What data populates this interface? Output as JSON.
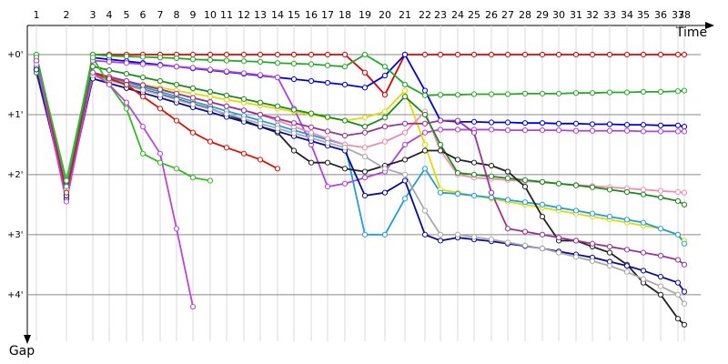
{
  "chart_data": {
    "type": "line",
    "xlabel": "Time",
    "ylabel": "Gap",
    "x": [
      1.0,
      4.3,
      7.2,
      9.0,
      10.9,
      12.7,
      14.6,
      16.4,
      18.2,
      20.1,
      21.9,
      23.8,
      25.6,
      27.5,
      29.3,
      31.2,
      33.0,
      34.9,
      37.1,
      39.3,
      41.5,
      43.7,
      45.4,
      47.3,
      49.1,
      51.0,
      52.8,
      54.7,
      56.6,
      58.4,
      60.3,
      62.1,
      64.0,
      65.9,
      67.7,
      69.6,
      71.5,
      72.2
    ],
    "xlim": [
      0,
      77
    ],
    "xticks": [
      {
        "value": 1.0,
        "label": "1"
      },
      {
        "value": 4.3,
        "label": "2"
      },
      {
        "value": 7.2,
        "label": "3"
      },
      {
        "value": 9.0,
        "label": "4"
      },
      {
        "value": 10.9,
        "label": "5"
      },
      {
        "value": 12.7,
        "label": "6"
      },
      {
        "value": 14.6,
        "label": "7"
      },
      {
        "value": 16.4,
        "label": "8"
      },
      {
        "value": 18.2,
        "label": "9"
      },
      {
        "value": 20.1,
        "label": "10"
      },
      {
        "value": 21.9,
        "label": "11"
      },
      {
        "value": 23.8,
        "label": "12"
      },
      {
        "value": 25.6,
        "label": "13"
      },
      {
        "value": 27.5,
        "label": "14"
      },
      {
        "value": 29.3,
        "label": "15"
      },
      {
        "value": 31.2,
        "label": "16"
      },
      {
        "value": 33.0,
        "label": "17"
      },
      {
        "value": 34.9,
        "label": "18"
      },
      {
        "value": 37.1,
        "label": "19"
      },
      {
        "value": 39.3,
        "label": "20"
      },
      {
        "value": 41.5,
        "label": "21"
      },
      {
        "value": 43.7,
        "label": "22"
      },
      {
        "value": 45.4,
        "label": "23"
      },
      {
        "value": 47.3,
        "label": "24"
      },
      {
        "value": 49.1,
        "label": "25"
      },
      {
        "value": 51.0,
        "label": "26"
      },
      {
        "value": 52.8,
        "label": "27"
      },
      {
        "value": 54.7,
        "label": "28"
      },
      {
        "value": 56.6,
        "label": "29"
      },
      {
        "value": 58.4,
        "label": "30"
      },
      {
        "value": 60.3,
        "label": "31"
      },
      {
        "value": 62.1,
        "label": "32"
      },
      {
        "value": 64.0,
        "label": "33"
      },
      {
        "value": 65.9,
        "label": "34"
      },
      {
        "value": 67.7,
        "label": "35"
      },
      {
        "value": 69.6,
        "label": "36"
      },
      {
        "value": 71.5,
        "label": "37"
      },
      {
        "value": 72.2,
        "label": "38"
      }
    ],
    "ylim": [
      -0.5,
      4.7
    ],
    "yticks": [
      {
        "value": 0,
        "label": "+0'"
      },
      {
        "value": 1,
        "label": "+1'"
      },
      {
        "value": 2,
        "label": "+2'"
      },
      {
        "value": 3,
        "label": "+3'"
      },
      {
        "value": 4,
        "label": "+4'"
      }
    ],
    "grid": true,
    "series": [
      {
        "color": "#e00000",
        "values": [
          0.02,
          2.35,
          0,
          0,
          0,
          0,
          0,
          0,
          0,
          0,
          0,
          0,
          0,
          0,
          0,
          0,
          0,
          0,
          0.3,
          0.67,
          0,
          0,
          0,
          0,
          0,
          0,
          0,
          0,
          0,
          0,
          0,
          0,
          0,
          0,
          0,
          0,
          0,
          0
        ]
      },
      {
        "color": "#0000dd",
        "values": [
          0.05,
          2.3,
          0.05,
          0.08,
          0.11,
          0.14,
          0.17,
          0.2,
          0.23,
          0.26,
          0.29,
          0.32,
          0.35,
          0.38,
          0.41,
          0.44,
          0.47,
          0.5,
          0.55,
          0.35,
          0,
          0.6,
          1.1,
          1.12,
          1.12,
          1.13,
          1.13,
          1.14,
          1.14,
          1.15,
          1.15,
          1.16,
          1.16,
          1.17,
          1.17,
          1.18,
          1.18,
          1.2
        ]
      },
      {
        "color": "#22aa22",
        "values": [
          0,
          2.2,
          0,
          0.02,
          0.03,
          0.04,
          0.05,
          0.06,
          0.08,
          0.09,
          0.1,
          0.11,
          0.12,
          0.14,
          0.15,
          0.16,
          0.18,
          0.2,
          0,
          0.2,
          0.5,
          0.68,
          0.67,
          0.67,
          0.66,
          0.66,
          0.66,
          0.65,
          0.65,
          0.65,
          0.64,
          0.64,
          0.63,
          0.63,
          0.62,
          0.62,
          0.61,
          0.6
        ]
      },
      {
        "color": "#b040e0",
        "values": [
          0.1,
          2.4,
          0.1,
          0.12,
          0.14,
          0.16,
          0.18,
          0.2,
          0.22,
          0.25,
          0.28,
          0.31,
          0.34,
          0.38,
          0.9,
          1.5,
          2.2,
          2.15,
          2.05,
          1.95,
          1.5,
          1.3,
          1.25,
          1.25,
          1.25,
          1.25,
          1.26,
          1.26,
          1.26,
          1.26,
          1.27,
          1.27,
          1.27,
          1.27,
          1.28,
          1.28,
          1.28,
          1.28
        ]
      },
      {
        "color": "#dddd00",
        "values": [
          0.15,
          2.25,
          0.35,
          0.4,
          0.45,
          0.5,
          0.55,
          0.6,
          0.65,
          0.7,
          0.75,
          0.8,
          0.85,
          0.9,
          0.95,
          1.0,
          1.05,
          1.1,
          1.05,
          0.95,
          0.6,
          1.5,
          2.25,
          2.3,
          2.35,
          2.4,
          2.45,
          2.5,
          2.55,
          2.6,
          2.65,
          2.7,
          2.75,
          2.8,
          2.85,
          2.9,
          3.0,
          3.1
        ]
      },
      {
        "color": "#1e9ee0",
        "values": [
          0.1,
          2.2,
          0.3,
          0.38,
          0.46,
          0.54,
          0.62,
          0.7,
          0.78,
          0.86,
          0.94,
          1.02,
          1.1,
          1.18,
          1.26,
          1.34,
          1.42,
          1.5,
          3.0,
          3.0,
          2.4,
          1.9,
          2.3,
          2.32,
          2.35,
          2.38,
          2.42,
          2.46,
          2.5,
          2.55,
          2.6,
          2.65,
          2.7,
          2.75,
          2.8,
          2.9,
          3.0,
          3.15
        ]
      },
      {
        "color": "#f08cb0",
        "values": [
          0.2,
          2.3,
          0.3,
          0.37,
          0.44,
          0.51,
          0.58,
          0.65,
          0.72,
          0.79,
          0.86,
          0.93,
          1.0,
          1.1,
          1.2,
          1.3,
          1.4,
          1.5,
          1.55,
          1.45,
          1.3,
          0.95,
          1.6,
          2.0,
          2.05,
          2.07,
          2.09,
          2.11,
          2.13,
          2.15,
          2.17,
          2.19,
          2.21,
          2.23,
          2.25,
          2.27,
          2.29,
          2.3
        ]
      },
      {
        "color": "#1a8a1a",
        "values": [
          0.3,
          2.3,
          0.2,
          0.26,
          0.32,
          0.38,
          0.44,
          0.5,
          0.56,
          0.62,
          0.68,
          0.74,
          0.8,
          0.86,
          0.92,
          0.98,
          1.04,
          1.1,
          1.2,
          1.05,
          0.7,
          1.0,
          1.5,
          1.97,
          2.0,
          2.03,
          2.06,
          2.09,
          2.12,
          2.15,
          2.18,
          2.21,
          2.25,
          2.29,
          2.33,
          2.38,
          2.44,
          2.5
        ]
      },
      {
        "color": "#222222",
        "values": [
          0.1,
          2.4,
          0.35,
          0.42,
          0.5,
          0.58,
          0.66,
          0.74,
          0.82,
          0.9,
          1.0,
          1.1,
          1.2,
          1.3,
          1.6,
          1.8,
          1.8,
          1.9,
          1.95,
          1.85,
          1.75,
          1.6,
          1.6,
          1.75,
          1.8,
          1.85,
          1.95,
          2.2,
          2.7,
          3.1,
          3.1,
          3.2,
          3.3,
          3.5,
          3.8,
          4.0,
          4.4,
          4.5
        ]
      },
      {
        "color": "#993399",
        "values": [
          0.2,
          2.35,
          0.3,
          0.37,
          0.44,
          0.51,
          0.58,
          0.65,
          0.72,
          0.79,
          0.86,
          0.93,
          1.0,
          1.07,
          1.14,
          1.21,
          1.28,
          1.35,
          1.3,
          1.2,
          1.15,
          1.15,
          1.1,
          1.1,
          1.3,
          2.3,
          2.9,
          2.95,
          3.0,
          3.05,
          3.1,
          3.15,
          3.2,
          3.25,
          3.3,
          3.35,
          3.42,
          3.5
        ]
      },
      {
        "color": "#0a0a9a",
        "values": [
          0.25,
          2.35,
          0.4,
          0.48,
          0.56,
          0.64,
          0.72,
          0.8,
          0.88,
          0.96,
          1.04,
          1.12,
          1.2,
          1.28,
          1.36,
          1.44,
          1.52,
          1.6,
          2.35,
          2.3,
          2.1,
          3.0,
          3.1,
          3.05,
          3.08,
          3.11,
          3.15,
          3.19,
          3.23,
          3.28,
          3.33,
          3.38,
          3.45,
          3.52,
          3.6,
          3.7,
          3.8,
          3.95
        ]
      },
      {
        "color": "#aaaaaa",
        "values": [
          0.15,
          2.3,
          0.35,
          0.43,
          0.51,
          0.59,
          0.67,
          0.75,
          0.83,
          0.91,
          0.99,
          1.07,
          1.15,
          1.23,
          1.31,
          1.39,
          1.47,
          1.55,
          1.7,
          1.9,
          2.0,
          2.6,
          3.0,
          3.0,
          3.04,
          3.08,
          3.13,
          3.18,
          3.23,
          3.3,
          3.37,
          3.44,
          3.52,
          3.62,
          3.74,
          3.86,
          4.0,
          4.15
        ]
      },
      {
        "color": "#dd1100",
        "values": [
          0.1,
          2.3,
          0.3,
          0.4,
          0.5,
          0.7,
          0.9,
          1.1,
          1.3,
          1.45,
          1.55,
          1.65,
          1.75,
          1.9,
          null,
          null,
          null,
          null,
          null,
          null,
          null,
          null,
          null,
          null,
          null,
          null,
          null,
          null,
          null,
          null,
          null,
          null,
          null,
          null,
          null,
          null,
          null,
          null
        ]
      },
      {
        "color": "#33bb22",
        "values": [
          0.05,
          2.1,
          0.05,
          0.5,
          0.9,
          1.65,
          1.8,
          1.9,
          2.05,
          2.1,
          null,
          null,
          null,
          null,
          null,
          null,
          null,
          null,
          null,
          null,
          null,
          null,
          null,
          null,
          null,
          null,
          null,
          null,
          null,
          null,
          null,
          null,
          null,
          null,
          null,
          null,
          null,
          null
        ]
      },
      {
        "color": "#bb44dd",
        "values": [
          0.1,
          2.45,
          0.3,
          0.5,
          0.8,
          1.2,
          1.65,
          2.9,
          4.2,
          null,
          null,
          null,
          null,
          null,
          null,
          null,
          null,
          null,
          null,
          null,
          null,
          null,
          null,
          null,
          null,
          null,
          null,
          null,
          null,
          null,
          null,
          null,
          null,
          null,
          null,
          null,
          null,
          null
        ]
      }
    ]
  }
}
